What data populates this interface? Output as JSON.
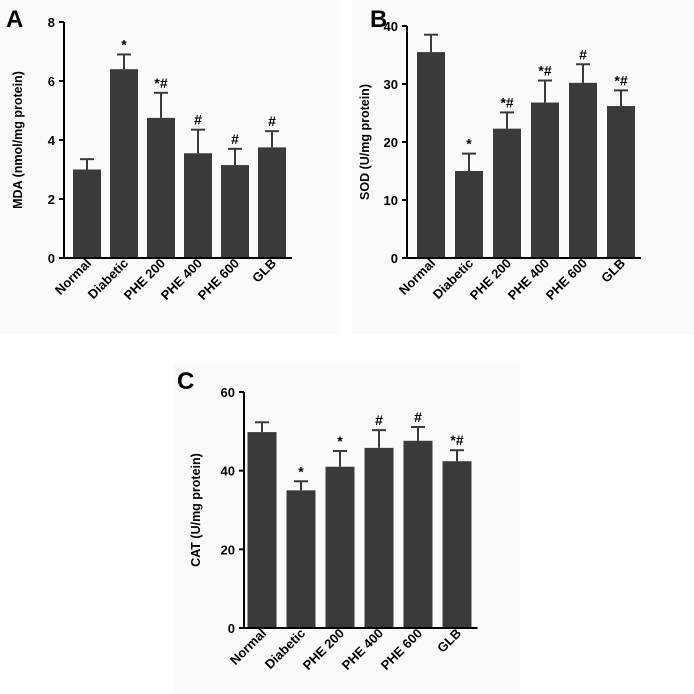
{
  "chart_data": [
    {
      "panel": "A",
      "type": "bar",
      "ylabel": "MDA (nmol/mg protein)",
      "categories": [
        "Normal",
        "Diabetic",
        "PHE 200",
        "PHE 400",
        "PHE 600",
        "GLB"
      ],
      "values": [
        3.0,
        6.4,
        4.75,
        3.55,
        3.15,
        3.75
      ],
      "errors": [
        0.35,
        0.5,
        0.85,
        0.8,
        0.55,
        0.55
      ],
      "annotations": [
        "",
        "*",
        "*#",
        "#",
        "#",
        "#"
      ],
      "ylim": [
        0,
        8
      ],
      "yticks": [
        0,
        2,
        4,
        6,
        8
      ],
      "bar_color": "#3a3a3a"
    },
    {
      "panel": "B",
      "type": "bar",
      "ylabel": "SOD (U/mg protein)",
      "categories": [
        "Normal",
        "Diabetic",
        "PHE 200",
        "PHE 400",
        "PHE 600",
        "GLB"
      ],
      "values": [
        35.5,
        15.0,
        22.3,
        26.8,
        30.2,
        26.2
      ],
      "errors": [
        3.0,
        3.0,
        2.8,
        3.8,
        3.2,
        2.7
      ],
      "annotations": [
        "",
        "*",
        "*#",
        "*#",
        "#",
        "*#"
      ],
      "ylim": [
        0,
        40
      ],
      "yticks": [
        0,
        10,
        20,
        30,
        40
      ],
      "bar_color": "#3a3a3a"
    },
    {
      "panel": "C",
      "type": "bar",
      "ylabel": "CAT (U/mg protein)",
      "categories": [
        "Normal",
        "Diabetic",
        "PHE 200",
        "PHE 400",
        "PHE 600",
        "GLB"
      ],
      "values": [
        49.8,
        35.0,
        41.0,
        45.8,
        47.6,
        42.4
      ],
      "errors": [
        2.5,
        2.3,
        4.0,
        4.5,
        3.5,
        2.8
      ],
      "annotations": [
        "",
        "*",
        "*",
        "#",
        "#",
        "*#"
      ],
      "ylim": [
        0,
        60
      ],
      "yticks": [
        0,
        20,
        40,
        60
      ],
      "bar_color": "#3a3a3a"
    }
  ]
}
